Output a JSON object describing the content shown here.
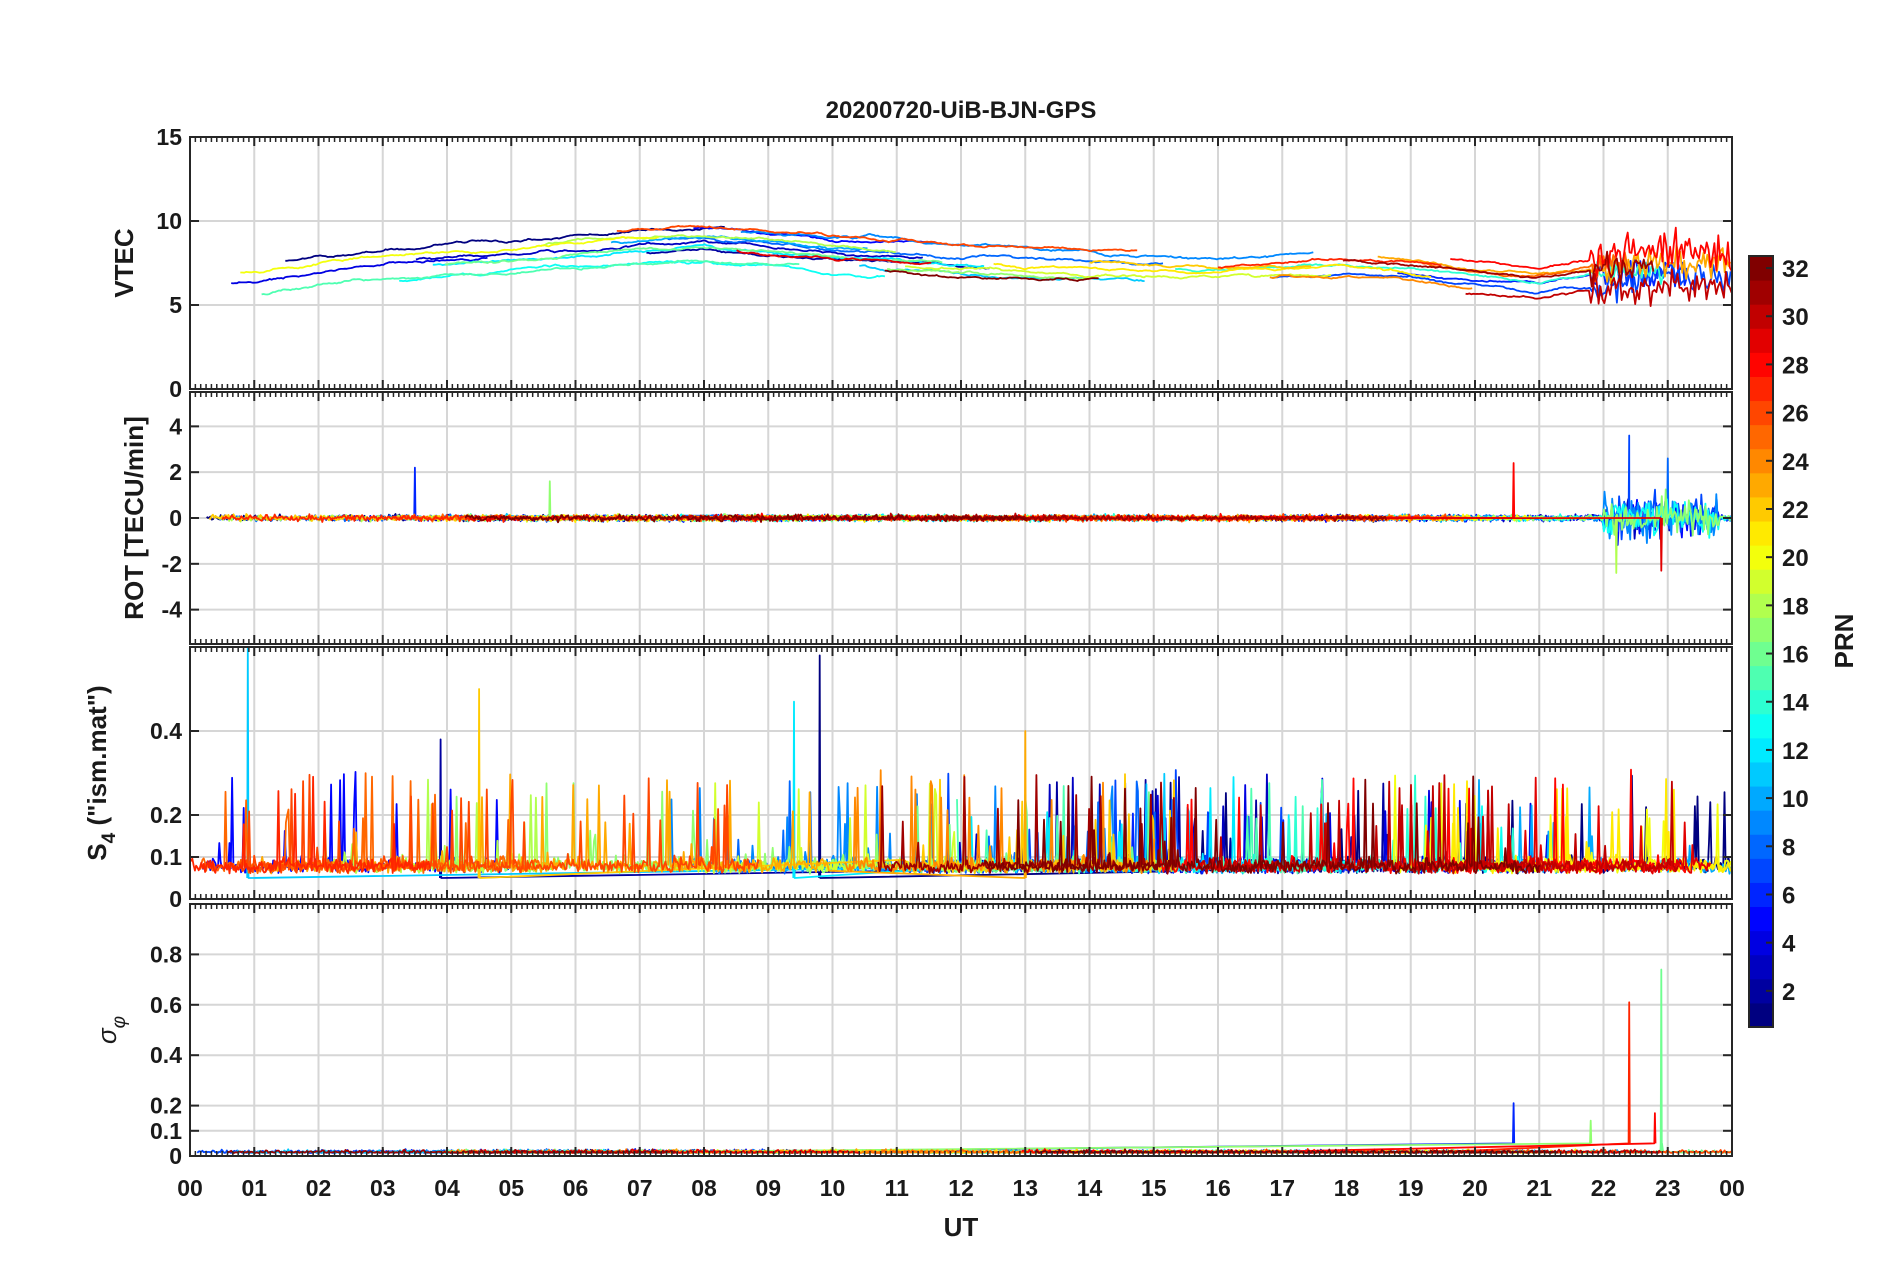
{
  "chart_data": {
    "type": "line",
    "title": "20200720-UiB-BJN-GPS",
    "xlabel": "UT",
    "x_tick_labels": [
      "00",
      "01",
      "02",
      "03",
      "04",
      "05",
      "06",
      "07",
      "08",
      "09",
      "10",
      "11",
      "12",
      "13",
      "14",
      "15",
      "16",
      "17",
      "18",
      "19",
      "20",
      "21",
      "22",
      "23",
      "00"
    ],
    "panels": [
      {
        "id": "vtec",
        "ylabel": "VTEC",
        "ylim": [
          0,
          15
        ],
        "y_ticks": [
          0,
          5,
          10,
          15
        ],
        "y_tick_labels": [
          "0",
          "5",
          "10",
          "15"
        ],
        "grid": true,
        "typical_range": [
          4.5,
          11.0
        ],
        "trend_by_hour": [
          6.0,
          6.4,
          7.0,
          7.4,
          7.6,
          7.8,
          8.1,
          8.4,
          8.6,
          8.3,
          8.0,
          7.8,
          7.6,
          7.4,
          7.3,
          7.1,
          7.0,
          7.2,
          7.4,
          7.1,
          6.6,
          6.3,
          6.8,
          7.2,
          6.9
        ]
      },
      {
        "id": "rot",
        "ylabel": "ROT [TECU/min]",
        "ylim": [
          -5.5,
          5.5
        ],
        "y_ticks": [
          -4,
          -2,
          0,
          2,
          4
        ],
        "y_tick_labels": [
          "-4",
          "-2",
          "0",
          "2",
          "4"
        ],
        "grid": true,
        "typical_range": [
          -0.3,
          0.3
        ],
        "peaks": [
          {
            "hour": 3.5,
            "value": 2.2
          },
          {
            "hour": 5.6,
            "value": 1.6
          },
          {
            "hour": 20.6,
            "value": 2.4
          },
          {
            "hour": 22.4,
            "value": 3.6
          },
          {
            "hour": 22.2,
            "value": -2.4
          },
          {
            "hour": 22.9,
            "value": -2.3
          },
          {
            "hour": 23.0,
            "value": 2.6
          }
        ]
      },
      {
        "id": "s4",
        "ylabel_main": "S",
        "ylabel_sub": "4",
        "ylabel_rest": " (\"ism.mat\")",
        "ylim": [
          0,
          0.6
        ],
        "y_ticks": [
          0,
          0.1,
          0.2,
          0.4
        ],
        "y_tick_labels": [
          "0",
          "0.1",
          "0.2",
          "0.4"
        ],
        "grid": true,
        "typical_range": [
          0.05,
          0.3
        ],
        "peaks": [
          {
            "hour": 0.9,
            "value": 0.6
          },
          {
            "hour": 4.5,
            "value": 0.5
          },
          {
            "hour": 9.8,
            "value": 0.58
          },
          {
            "hour": 9.4,
            "value": 0.47
          },
          {
            "hour": 13.0,
            "value": 0.4
          },
          {
            "hour": 3.9,
            "value": 0.38
          }
        ]
      },
      {
        "id": "sigma_phi",
        "ylabel_main": "σ",
        "ylabel_sub": "φ",
        "ylim": [
          0,
          1
        ],
        "y_ticks": [
          0,
          0.1,
          0.2,
          0.4,
          0.6,
          0.8
        ],
        "y_tick_labels": [
          "0",
          "0.1",
          "0.2",
          "0.4",
          "0.6",
          "0.8"
        ],
        "grid": true,
        "typical_range": [
          0,
          0.05
        ],
        "peaks": [
          {
            "hour": 22.9,
            "value": 0.74
          },
          {
            "hour": 22.4,
            "value": 0.61
          },
          {
            "hour": 20.6,
            "value": 0.21
          },
          {
            "hour": 21.8,
            "value": 0.14
          },
          {
            "hour": 22.8,
            "value": 0.17
          }
        ]
      }
    ],
    "colorbar": {
      "label": "PRN",
      "range": [
        1,
        32
      ],
      "ticks": [
        2,
        4,
        6,
        8,
        10,
        12,
        14,
        16,
        18,
        20,
        22,
        24,
        26,
        28,
        30,
        32
      ],
      "tick_labels": [
        "2",
        "4",
        "6",
        "8",
        "10",
        "12",
        "14",
        "16",
        "18",
        "20",
        "22",
        "24",
        "26",
        "28",
        "30",
        "32"
      ],
      "colormap": "jet"
    },
    "series_count": 32,
    "series_names": [
      "PRN 1 … PRN 32"
    ]
  }
}
